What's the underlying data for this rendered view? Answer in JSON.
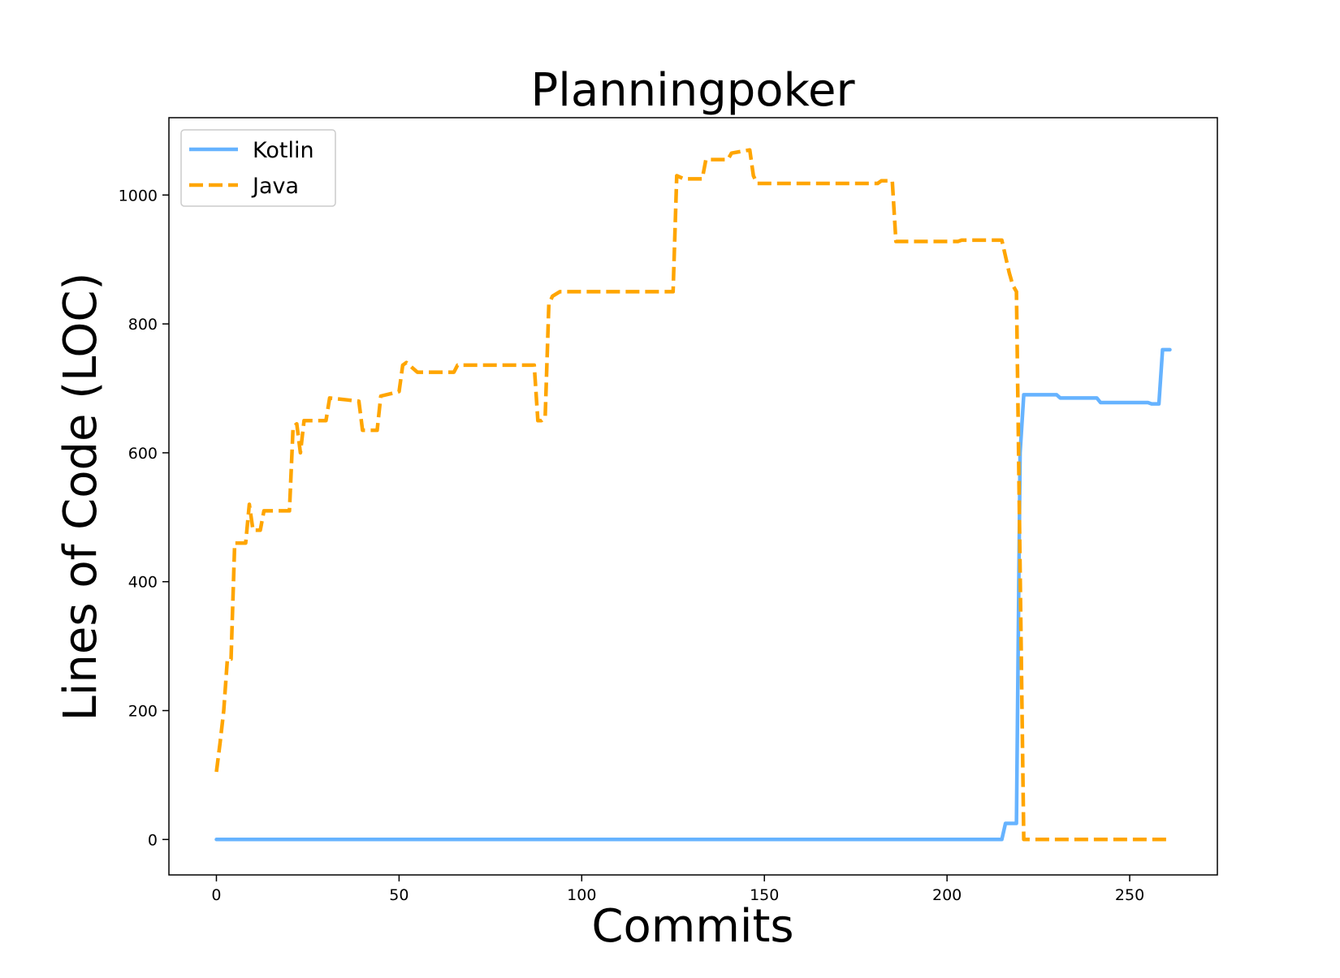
{
  "chart_data": {
    "type": "line",
    "title": "Planningpoker",
    "xlabel": "Commits",
    "ylabel": "Lines of Code (LOC)",
    "xlim": [
      -13,
      274
    ],
    "ylim": [
      -55,
      1120
    ],
    "xticks": [
      0,
      50,
      100,
      150,
      200,
      250
    ],
    "yticks": [
      0,
      200,
      400,
      600,
      800,
      1000
    ],
    "grid": false,
    "legend_position": "top-left",
    "series": [
      {
        "name": "Kotlin",
        "color": "#66b3ff",
        "style": "solid",
        "points": [
          [
            0,
            0
          ],
          [
            214,
            0
          ],
          [
            215,
            0
          ],
          [
            216,
            25
          ],
          [
            219,
            25
          ],
          [
            220,
            600
          ],
          [
            221,
            690
          ],
          [
            230,
            690
          ],
          [
            231,
            685
          ],
          [
            241,
            685
          ],
          [
            242,
            678
          ],
          [
            255,
            678
          ],
          [
            256,
            676
          ],
          [
            258,
            676
          ],
          [
            259,
            760
          ],
          [
            261,
            760
          ]
        ]
      },
      {
        "name": "Java",
        "color": "#ffa500",
        "style": "dashed",
        "points": [
          [
            0,
            105
          ],
          [
            1,
            150
          ],
          [
            2,
            200
          ],
          [
            3,
            280
          ],
          [
            4,
            280
          ],
          [
            5,
            460
          ],
          [
            8,
            460
          ],
          [
            9,
            520
          ],
          [
            10,
            480
          ],
          [
            12,
            480
          ],
          [
            13,
            510
          ],
          [
            20,
            510
          ],
          [
            21,
            640
          ],
          [
            22,
            645
          ],
          [
            23,
            600
          ],
          [
            24,
            650
          ],
          [
            30,
            650
          ],
          [
            31,
            685
          ],
          [
            36,
            682
          ],
          [
            39,
            680
          ],
          [
            40,
            635
          ],
          [
            44,
            635
          ],
          [
            45,
            688
          ],
          [
            50,
            695
          ],
          [
            51,
            736
          ],
          [
            52,
            740
          ],
          [
            55,
            725
          ],
          [
            65,
            725
          ],
          [
            66,
            736
          ],
          [
            87,
            736
          ],
          [
            88,
            650
          ],
          [
            89,
            650
          ],
          [
            90,
            655
          ],
          [
            91,
            830
          ],
          [
            92,
            843
          ],
          [
            94,
            850
          ],
          [
            124,
            850
          ],
          [
            125,
            850
          ],
          [
            126,
            1030
          ],
          [
            128,
            1025
          ],
          [
            133,
            1025
          ],
          [
            134,
            1055
          ],
          [
            140,
            1055
          ],
          [
            141,
            1065
          ],
          [
            146,
            1070
          ],
          [
            147,
            1030
          ],
          [
            148,
            1018
          ],
          [
            181,
            1018
          ],
          [
            182,
            1022
          ],
          [
            185,
            1022
          ],
          [
            186,
            928
          ],
          [
            203,
            928
          ],
          [
            204,
            930
          ],
          [
            215,
            930
          ],
          [
            217,
            880
          ],
          [
            218,
            860
          ],
          [
            219,
            850
          ],
          [
            220,
            420
          ],
          [
            221,
            0
          ],
          [
            261,
            0
          ]
        ]
      }
    ]
  }
}
